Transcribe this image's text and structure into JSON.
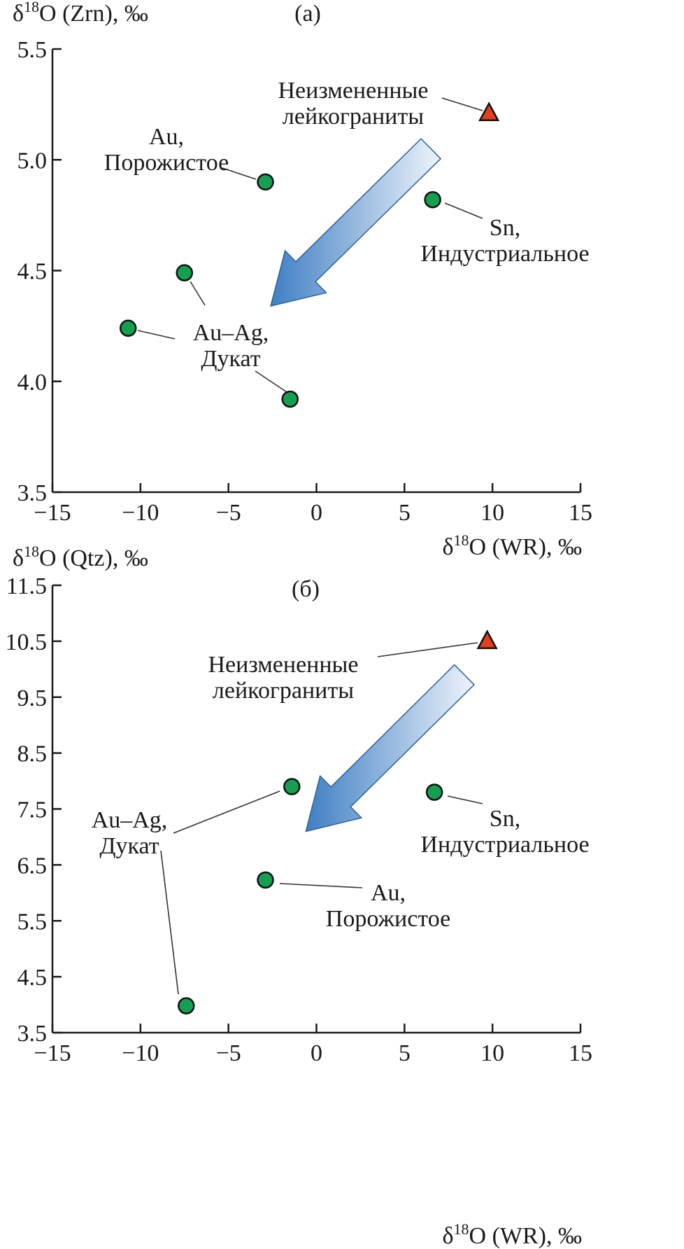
{
  "chart_data": [
    {
      "type": "scatter",
      "panel_label": "(a)",
      "xlabel": {
        "prefix": "δ",
        "sup": "18",
        "rest": "O (WR), ‰"
      },
      "ylabel": {
        "prefix": "δ",
        "sup": "18",
        "rest": "O (Zrn), ‰"
      },
      "xlim": [
        -15,
        15
      ],
      "ylim": [
        3.5,
        5.5
      ],
      "xticks": [
        "−15",
        "−10",
        "−5",
        "0",
        "5",
        "10",
        "15"
      ],
      "xtick_values": [
        -15,
        -10,
        -5,
        0,
        5,
        10,
        15
      ],
      "yticks": [
        "3.5",
        "4.0",
        "4.5",
        "5.0",
        "5.5"
      ],
      "ytick_values": [
        3.5,
        4.0,
        4.5,
        5.0,
        5.5
      ],
      "grid": false,
      "points": [
        {
          "group": "leucogranite",
          "marker": "triangle",
          "x": 9.8,
          "y": 5.21
        },
        {
          "group": "Au",
          "marker": "circle",
          "x": -2.9,
          "y": 4.9
        },
        {
          "group": "Sn",
          "marker": "circle",
          "x": 6.6,
          "y": 4.82
        },
        {
          "group": "Au-Ag",
          "marker": "circle",
          "x": -7.5,
          "y": 4.49
        },
        {
          "group": "Au-Ag",
          "marker": "circle",
          "x": -10.7,
          "y": 4.24
        },
        {
          "group": "Au-Ag",
          "marker": "circle",
          "x": -1.5,
          "y": 3.92
        }
      ],
      "annotations": [
        {
          "lines": [
            "Неизмененные",
            "лейкограниты"
          ]
        },
        {
          "lines": [
            "Au,",
            "Порожистое"
          ]
        },
        {
          "lines": [
            "Sn,",
            "Индустриальное"
          ]
        },
        {
          "lines": [
            "Au–Ag,",
            "Дукат"
          ]
        }
      ],
      "arrow": {
        "from": [
          6.5,
          5.05
        ],
        "to": [
          -2.6,
          4.34
        ]
      }
    },
    {
      "type": "scatter",
      "panel_label": "(б)",
      "xlabel": {
        "prefix": "δ",
        "sup": "18",
        "rest": "O (WR), ‰"
      },
      "ylabel": {
        "prefix": "δ",
        "sup": "18",
        "rest": "O (Qtz), ‰"
      },
      "xlim": [
        -15,
        15
      ],
      "ylim": [
        3.5,
        11.5
      ],
      "xticks": [
        "−15",
        "−10",
        "−5",
        "0",
        "5",
        "10",
        "15"
      ],
      "xtick_values": [
        -15,
        -10,
        -5,
        0,
        5,
        10,
        15
      ],
      "yticks": [
        "3.5",
        "4.5",
        "5.5",
        "6.5",
        "7.5",
        "8.5",
        "9.5",
        "10.5",
        "11.5"
      ],
      "ytick_values": [
        3.5,
        4.5,
        5.5,
        6.5,
        7.5,
        8.5,
        9.5,
        10.5,
        11.5
      ],
      "grid": false,
      "points": [
        {
          "group": "leucogranite",
          "marker": "triangle",
          "x": 9.7,
          "y": 10.5
        },
        {
          "group": "Au-Ag",
          "marker": "circle",
          "x": -1.4,
          "y": 7.9
        },
        {
          "group": "Sn",
          "marker": "circle",
          "x": 6.7,
          "y": 7.8
        },
        {
          "group": "Au",
          "marker": "circle",
          "x": -2.9,
          "y": 6.23
        },
        {
          "group": "Au-Ag",
          "marker": "circle",
          "x": -7.4,
          "y": 3.98
        }
      ],
      "annotations": [
        {
          "lines": [
            "Неизмененные",
            "лейкограниты"
          ]
        },
        {
          "lines": [
            "Sn,",
            "Индустриальное"
          ]
        },
        {
          "lines": [
            "Au,",
            "Порожистое"
          ]
        },
        {
          "lines": [
            "Au–Ag,",
            "Дукат"
          ]
        }
      ],
      "arrow": {
        "from": [
          8.4,
          9.9
        ],
        "to": [
          -0.6,
          7.1
        ]
      }
    }
  ],
  "colors": {
    "circle": "#14a050",
    "triangle": "#e0401c",
    "arrow_dark": "#3f7fc4",
    "arrow_light": "#eef3fa"
  }
}
